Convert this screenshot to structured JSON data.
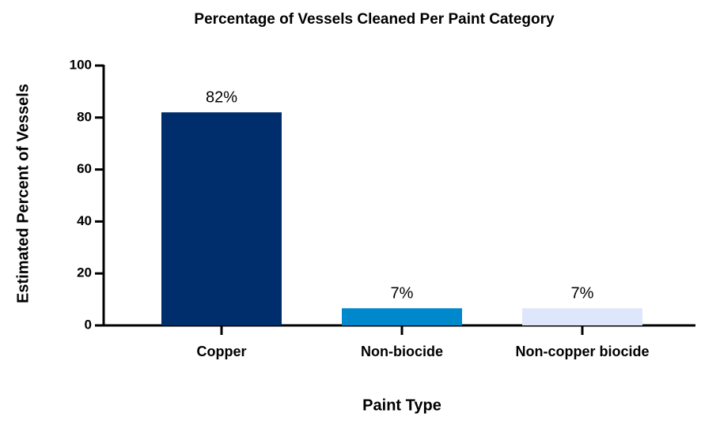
{
  "chart_data": {
    "type": "bar",
    "title": "Percentage of Vessels Cleaned Per Paint Category",
    "x_label": "Paint Type",
    "y_label": "Estimated Percent of Vessels",
    "categories": [
      "Copper",
      "Non-biocide",
      "Non-copper biocide"
    ],
    "values": [
      82,
      6.6,
      6.6
    ],
    "value_labels": [
      "82%",
      "7%",
      "7%"
    ],
    "colors": [
      "#002d6b",
      "#0088cc",
      "#dde6fa"
    ],
    "ylim": [
      0,
      100
    ],
    "yticks": [
      0,
      20,
      40,
      60,
      80,
      100
    ],
    "grid": false
  }
}
